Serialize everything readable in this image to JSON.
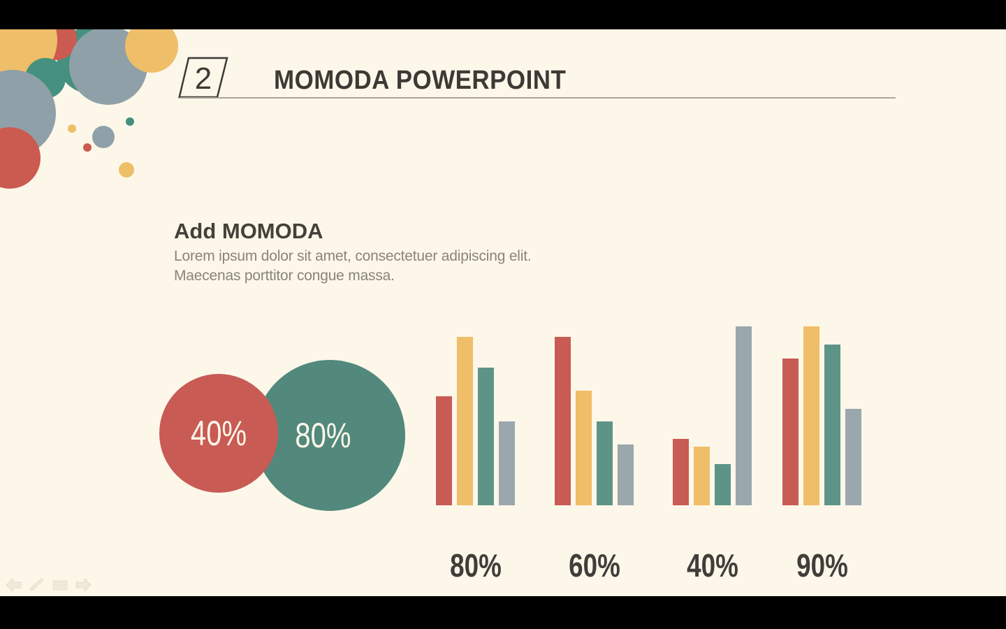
{
  "window": {
    "kind": "powerpoint-slideshow",
    "letterbox_color": "#000000",
    "slide_background": "#FCF7E9"
  },
  "palette": {
    "red": "#C85B54",
    "yellow": "#EFBE68",
    "teal": "#45907E",
    "teal_bar": "#5D9487",
    "teal_venn": "#52897C",
    "gray": "#8FA0A8",
    "gray_bar": "#9AA7AD",
    "ink": "#3D3935",
    "muted_text": "#8A8478",
    "divider": "#ABA699"
  },
  "header": {
    "slide_number": "2",
    "title": "MOMODA POWERPOINT"
  },
  "content": {
    "heading": "Add MOMODA",
    "body_line1": "Lorem ipsum dolor sit amet, consectetuer adipiscing elit.",
    "body_line2": "Maecenas porttitor congue massa."
  },
  "chart_data": [
    {
      "type": "bar",
      "title": "",
      "categories": [
        "80%",
        "60%",
        "40%",
        "90%"
      ],
      "series": [
        {
          "name": "red",
          "color": "#C85B54",
          "values": [
            61,
            94,
            37,
            82
          ]
        },
        {
          "name": "yellow",
          "color": "#EFBE68",
          "values": [
            94,
            64,
            33,
            100
          ]
        },
        {
          "name": "teal",
          "color": "#5D9487",
          "values": [
            77,
            47,
            23,
            90
          ]
        },
        {
          "name": "gray",
          "color": "#9AA7AD",
          "values": [
            47,
            34,
            100,
            54
          ]
        }
      ],
      "ylim": [
        0,
        100
      ],
      "grid": false,
      "legend": "none",
      "value_labels": "category percentages below groups"
    },
    {
      "type": "venn-circles",
      "items": [
        {
          "label": "40%",
          "color": "#C85B54"
        },
        {
          "label": "80%",
          "color": "#52897C"
        }
      ]
    }
  ],
  "decor_bubbles": [
    {
      "name": "teal-bubble-top",
      "color": "teal"
    },
    {
      "name": "red-bubble-top",
      "color": "red"
    },
    {
      "name": "yellow-bubble-corner",
      "color": "yellow"
    },
    {
      "name": "gray-bubble-large",
      "color": "gray"
    },
    {
      "name": "yellow-bubble-right",
      "color": "yellow"
    },
    {
      "name": "teal-bubble-left",
      "color": "teal"
    },
    {
      "name": "gray-bubble-left",
      "color": "gray"
    },
    {
      "name": "red-bubble-bottom",
      "color": "red"
    },
    {
      "name": "yellow-dot-small",
      "color": "yellow"
    },
    {
      "name": "teal-dot-small",
      "color": "teal"
    },
    {
      "name": "gray-dot-medium",
      "color": "gray"
    },
    {
      "name": "red-dot-small",
      "color": "red"
    },
    {
      "name": "yellow-dot-medium",
      "color": "yellow"
    }
  ],
  "presenter_controls": {
    "icons": [
      "previous-slide",
      "pen",
      "menu",
      "next-slide"
    ]
  }
}
